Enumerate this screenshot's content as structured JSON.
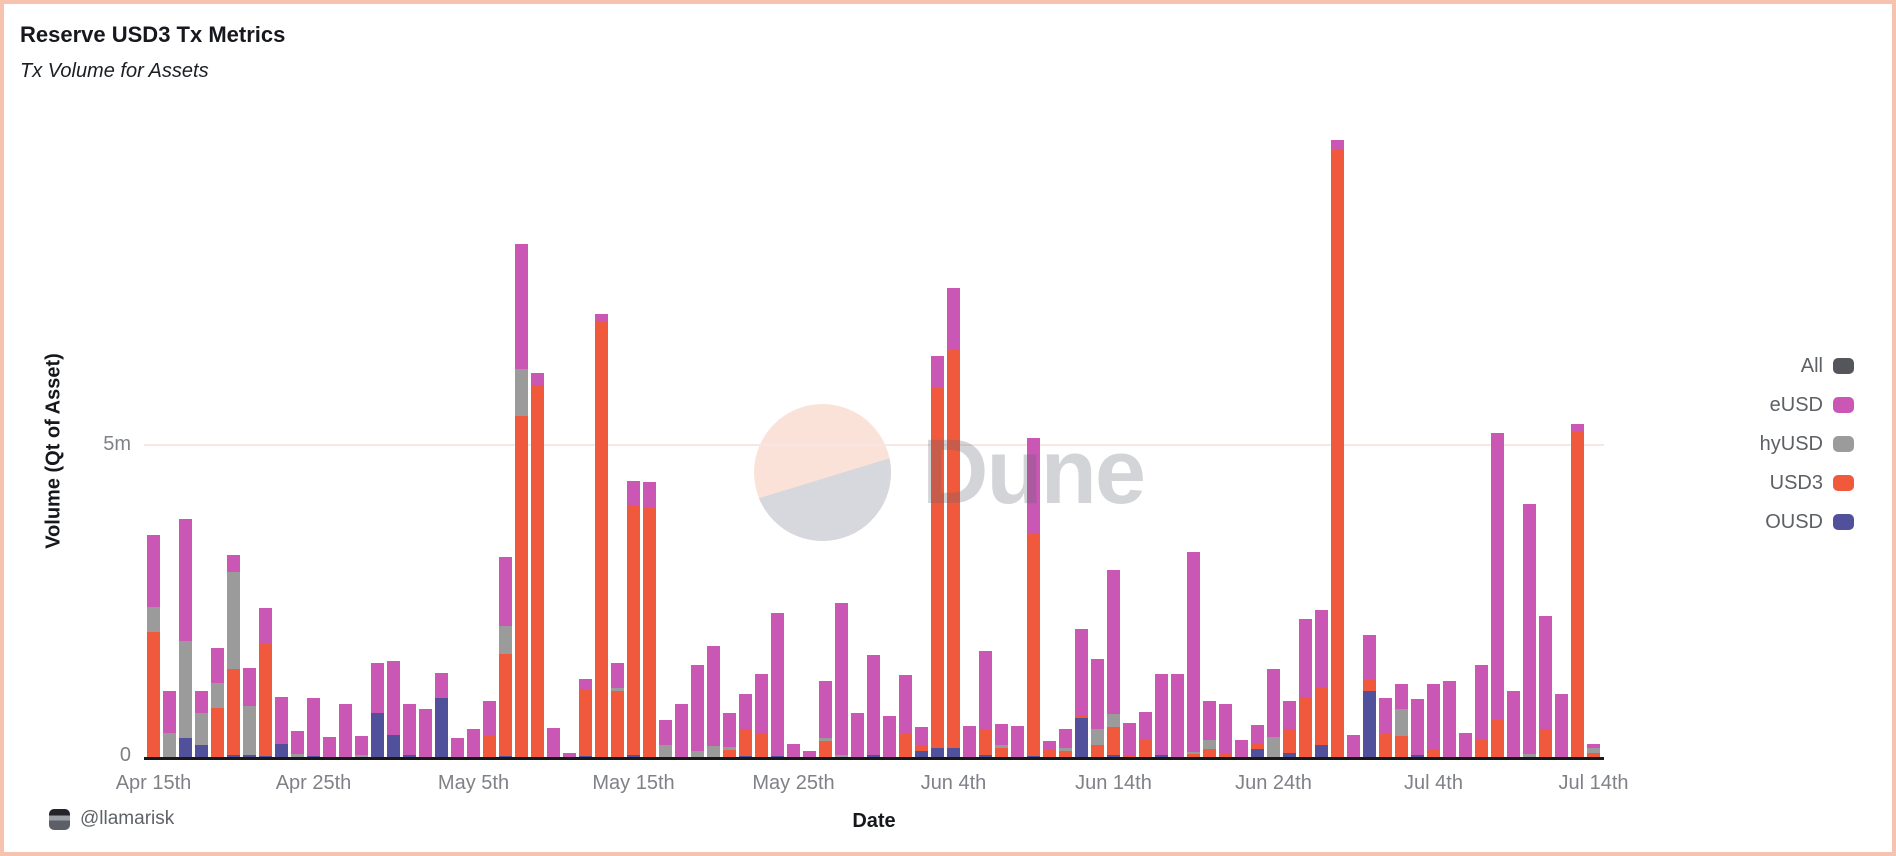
{
  "header": {
    "title": "Reserve USD3 Tx Metrics",
    "subtitle": "Tx Volume for Assets"
  },
  "y_axis": {
    "label": "Volume (Qt of Asset)",
    "ticks": [
      {
        "label": "5m",
        "value": 5
      },
      {
        "label": "0",
        "value": 0
      }
    ]
  },
  "x_axis": {
    "label": "Date",
    "ticks": [
      "Apr 15th",
      "Apr 25th",
      "May 5th",
      "May 15th",
      "May 25th",
      "Jun 4th",
      "Jun 14th",
      "Jun 24th",
      "Jul 4th",
      "Jul 14th"
    ]
  },
  "legend": [
    {
      "label": "All",
      "color": "#55565b"
    },
    {
      "label": "eUSD",
      "color": "#c957b3"
    },
    {
      "label": "hyUSD",
      "color": "#9b9b9b"
    },
    {
      "label": "USD3",
      "color": "#f0593c"
    },
    {
      "label": "OUSD",
      "color": "#51519b"
    }
  ],
  "watermark": {
    "text": "Dune"
  },
  "footer": {
    "handle": "@llamarisk"
  },
  "colors": {
    "frame_border": "#f8c2b0",
    "axis_line": "#17191d",
    "gridline": "#f8e6e5",
    "tick_text": "#7e8186"
  },
  "chart_data": {
    "type": "bar",
    "stacked": true,
    "title": "Reserve USD3 Tx Metrics",
    "subtitle": "Tx Volume for Assets",
    "xlabel": "Date",
    "ylabel": "Volume (Qt of Asset)",
    "unit": "millions",
    "ylim": [
      0,
      10.5
    ],
    "gridlines": [
      5
    ],
    "legend_position": "right",
    "x_tick_labels": [
      "Apr 15th",
      "Apr 25th",
      "May 5th",
      "May 15th",
      "May 25th",
      "Jun 4th",
      "Jun 14th",
      "Jun 24th",
      "Jul 4th",
      "Jul 14th"
    ],
    "x_tick_positions": [
      0,
      10,
      20,
      30,
      40,
      50,
      60,
      70,
      80,
      90
    ],
    "stack_order": [
      "OUSD",
      "USD3",
      "hyUSD",
      "eUSD",
      "All"
    ],
    "categories": [
      "Apr 15",
      "Apr 16",
      "Apr 17",
      "Apr 18",
      "Apr 19",
      "Apr 20",
      "Apr 21",
      "Apr 22",
      "Apr 23",
      "Apr 24",
      "Apr 25",
      "Apr 26",
      "Apr 27",
      "Apr 28",
      "Apr 29",
      "Apr 30",
      "May 1",
      "May 2",
      "May 3",
      "May 4",
      "May 5",
      "May 6",
      "May 7",
      "May 8",
      "May 9",
      "May 10",
      "May 11",
      "May 12",
      "May 13",
      "May 14",
      "May 15",
      "May 16",
      "May 17",
      "May 18",
      "May 19",
      "May 20",
      "May 21",
      "May 22",
      "May 23",
      "May 24",
      "May 25",
      "May 26",
      "May 27",
      "May 28",
      "May 29",
      "May 30",
      "May 31",
      "Jun 1",
      "Jun 2",
      "Jun 3",
      "Jun 4",
      "Jun 5",
      "Jun 6",
      "Jun 7",
      "Jun 8",
      "Jun 9",
      "Jun 10",
      "Jun 11",
      "Jun 12",
      "Jun 13",
      "Jun 14",
      "Jun 15",
      "Jun 16",
      "Jun 17",
      "Jun 18",
      "Jun 19",
      "Jun 20",
      "Jun 21",
      "Jun 22",
      "Jun 23",
      "Jun 24",
      "Jun 25",
      "Jun 26",
      "Jun 27",
      "Jun 28",
      "Jun 29",
      "Jun 30",
      "Jul 1",
      "Jul 2",
      "Jul 3",
      "Jul 4",
      "Jul 5",
      "Jul 6",
      "Jul 7",
      "Jul 8",
      "Jul 9",
      "Jul 10",
      "Jul 11",
      "Jul 12",
      "Jul 13",
      "Jul 14"
    ],
    "series": [
      {
        "name": "OUSD",
        "color": "#51519b",
        "values": [
          0,
          0,
          0.3,
          0.2,
          0,
          0.03,
          0.04,
          0.02,
          0.21,
          0,
          0.02,
          0,
          0,
          0,
          0.7,
          0.35,
          0.04,
          0,
          0.95,
          0,
          0,
          0,
          0.02,
          0,
          0,
          0,
          0,
          0.02,
          0,
          0,
          0.03,
          0,
          0,
          0,
          0,
          0,
          0,
          0.02,
          0,
          0.02,
          0,
          0,
          0,
          0,
          0,
          0.03,
          0,
          0,
          0.1,
          0.15,
          0.15,
          0,
          0.04,
          0,
          0,
          0.02,
          0,
          0,
          0.62,
          0,
          0.03,
          0,
          0,
          0.03,
          0,
          0,
          0,
          0,
          0,
          0.13,
          0,
          0.06,
          0,
          0.19,
          0,
          0,
          1.05,
          0,
          0,
          0.04,
          0,
          0,
          0,
          0,
          0,
          0,
          0,
          0,
          0,
          0,
          0
        ]
      },
      {
        "name": "USD3",
        "color": "#f0593c",
        "values": [
          2.0,
          0,
          0,
          0,
          0.78,
          1.38,
          0,
          1.78,
          0,
          0,
          0,
          0,
          0,
          0,
          0,
          0,
          0,
          0,
          0,
          0,
          0,
          0.35,
          1.63,
          5.45,
          5.95,
          0,
          0,
          1.05,
          6.95,
          1.05,
          3.98,
          4.0,
          0,
          0,
          0,
          0,
          0.11,
          0.42,
          0.39,
          0,
          0,
          0,
          0.26,
          0,
          0,
          0,
          0,
          0.37,
          0.08,
          5.75,
          6.35,
          0,
          0.4,
          0.15,
          0,
          3.55,
          0.12,
          0.1,
          0.05,
          0.19,
          0.45,
          0.04,
          0.28,
          0,
          0,
          0.05,
          0.13,
          0.05,
          0,
          0.08,
          0,
          0.38,
          0.95,
          0.93,
          9.7,
          0,
          0.2,
          0.37,
          0.34,
          0,
          0.13,
          0,
          0,
          0.27,
          0.61,
          0,
          0,
          0.45,
          0,
          5.2,
          0.07
        ]
      },
      {
        "name": "hyUSD",
        "color": "#9b9b9b",
        "values": [
          0.39,
          0.39,
          1.55,
          0.5,
          0.4,
          1.54,
          0.77,
          0,
          0,
          0.05,
          0,
          0,
          0,
          0.04,
          0,
          0,
          0,
          0,
          0,
          0,
          0,
          0,
          0.45,
          0.75,
          0,
          0,
          0,
          0,
          0,
          0.06,
          0,
          0,
          0.2,
          0,
          0.1,
          0.18,
          0.05,
          0,
          0,
          0,
          0,
          0,
          0.05,
          0.04,
          0,
          0,
          0,
          0,
          0,
          0,
          0,
          0,
          0,
          0.05,
          0,
          0,
          0,
          0.04,
          0,
          0.26,
          0.2,
          0,
          0,
          0,
          0,
          0.03,
          0.15,
          0,
          0,
          0,
          0.32,
          0,
          0,
          0,
          0,
          0,
          0,
          0,
          0.43,
          0,
          0,
          0,
          0,
          0,
          0,
          0,
          0.05,
          0,
          0,
          0,
          0.07
        ]
      },
      {
        "name": "eUSD",
        "color": "#c957b3",
        "values": [
          1.16,
          0.66,
          1.95,
          0.35,
          0.57,
          0.28,
          0.62,
          0.58,
          0.75,
          0.37,
          0.92,
          0.32,
          0.84,
          0.3,
          0.8,
          1.18,
          0.8,
          0.77,
          0.4,
          0.3,
          0.45,
          0.55,
          1.1,
          2.0,
          0.18,
          0.47,
          0.07,
          0.18,
          0.12,
          0.4,
          0.4,
          0.4,
          0.4,
          0.85,
          1.37,
          1.6,
          0.55,
          0.57,
          0.93,
          2.28,
          0.21,
          0.09,
          0.9,
          2.42,
          0.7,
          1.6,
          0.66,
          0.94,
          0.3,
          0.5,
          1.0,
          0.5,
          1.25,
          0.33,
          0.5,
          1.53,
          0.14,
          0.3,
          1.38,
          1.12,
          2.3,
          0.5,
          0.44,
          1.3,
          1.33,
          3.2,
          0.62,
          0.8,
          0.27,
          0.31,
          1.08,
          0.46,
          1.25,
          1.23,
          0.15,
          0.35,
          0.7,
          0.58,
          0.4,
          0.88,
          1.03,
          1.21,
          0.38,
          1.2,
          4.56,
          1.05,
          4.0,
          1.8,
          1.0,
          0.12,
          0.06
        ]
      },
      {
        "name": "All",
        "color": "#55565b",
        "values": [
          0,
          0,
          0,
          0,
          0,
          0,
          0,
          0,
          0,
          0,
          0,
          0,
          0,
          0,
          0,
          0,
          0,
          0,
          0,
          0,
          0,
          0,
          0,
          0,
          0,
          0,
          0,
          0,
          0,
          0,
          0,
          0,
          0,
          0,
          0,
          0,
          0,
          0,
          0,
          0,
          0,
          0,
          0,
          0,
          0,
          0,
          0,
          0,
          0,
          0,
          0,
          0,
          0,
          0,
          0,
          0,
          0,
          0,
          0,
          0,
          0,
          0,
          0,
          0,
          0,
          0,
          0,
          0,
          0,
          0,
          0,
          0,
          0,
          0,
          0,
          0,
          0,
          0,
          0,
          0,
          0,
          0,
          0,
          0,
          0,
          0,
          0,
          0,
          0,
          0,
          0
        ]
      }
    ]
  }
}
